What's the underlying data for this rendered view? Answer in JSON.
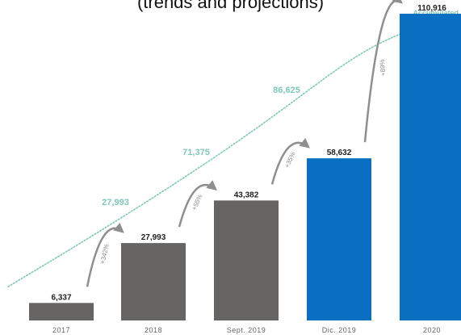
{
  "colors": {
    "gray_bar": "#666564",
    "blue_bar": "#0a6fc0",
    "accumulated": "#7ec9b7",
    "arrow": "#8f8f8f"
  },
  "chart_data": {
    "type": "bar",
    "subtitle": "(trends and projections)",
    "categories": [
      "2017",
      "2018",
      "Sept. 2019",
      "Dic. 2019",
      "2020"
    ],
    "values": [
      6337,
      27993,
      43382,
      58632,
      110916
    ],
    "value_labels": [
      "6,337",
      "27,993",
      "43,382",
      "58,632",
      "110,916"
    ],
    "bar_colors": [
      "gray",
      "gray",
      "gray",
      "blue",
      "blue"
    ],
    "growth_labels": [
      "+342%",
      "+55%",
      "+35%",
      "+89%"
    ],
    "ylim": [
      0,
      120000
    ],
    "grid": false,
    "accumulated": {
      "label": "Accumulated",
      "line_style": "dotted",
      "points": [
        {
          "after_category": "2018",
          "value_label": "27,993"
        },
        {
          "after_category": "Sept. 2019",
          "value_label": "71,375"
        },
        {
          "after_category": "Dic. 2019",
          "value_label": "86,625"
        }
      ]
    }
  }
}
